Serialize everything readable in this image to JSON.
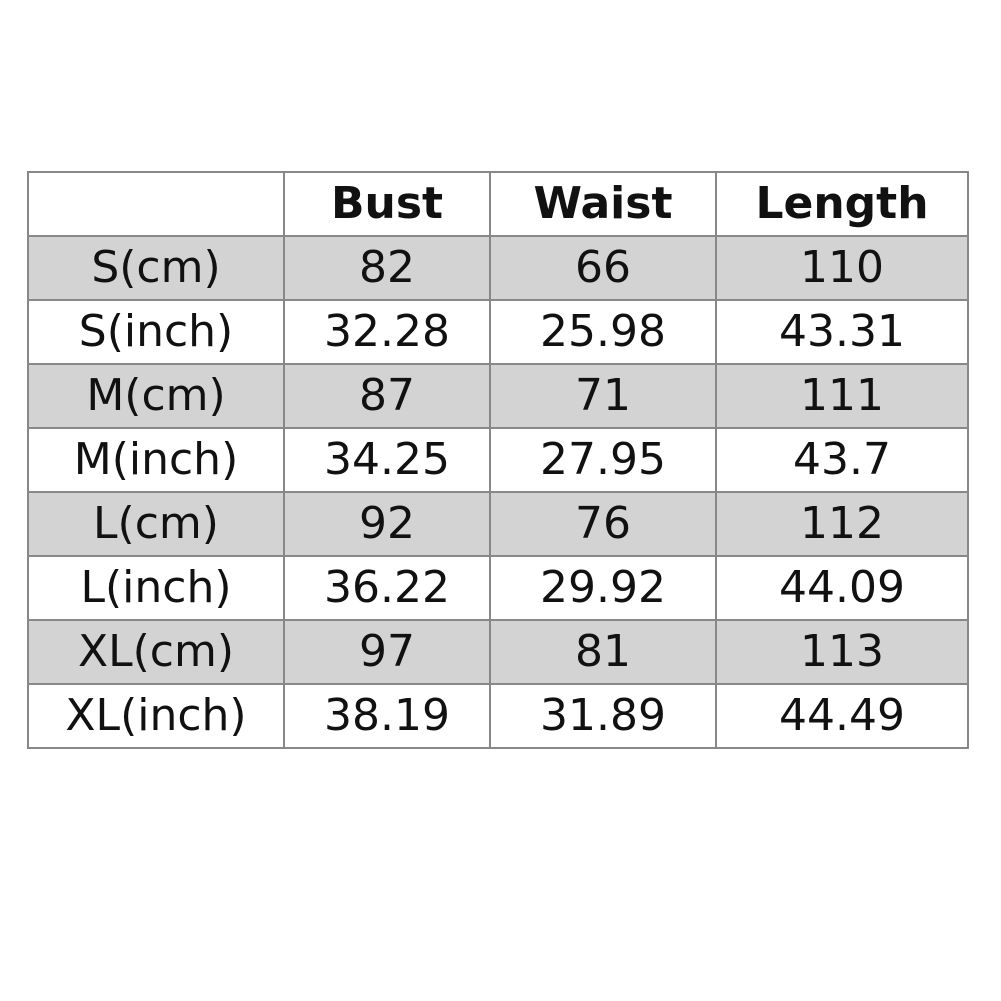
{
  "table": {
    "headers": [
      "",
      "Bust",
      "Waist",
      "Length"
    ],
    "rows": [
      [
        "S(cm)",
        "82",
        "66",
        "110"
      ],
      [
        "S(inch)",
        "32.28",
        "25.98",
        "43.31"
      ],
      [
        "M(cm)",
        "87",
        "71",
        "111"
      ],
      [
        "M(inch)",
        "34.25",
        "27.95",
        "43.7"
      ],
      [
        "L(cm)",
        "92",
        "76",
        "112"
      ],
      [
        "L(inch)",
        "36.22",
        "29.92",
        "44.09"
      ],
      [
        "XL(cm)",
        "97",
        "81",
        "113"
      ],
      [
        "XL(inch)",
        "38.19",
        "31.89",
        "44.49"
      ]
    ],
    "shaded_row_color": "#d3d3d3"
  }
}
